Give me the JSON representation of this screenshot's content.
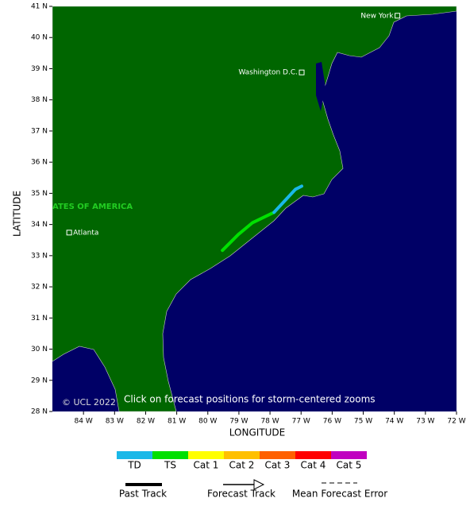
{
  "map": {
    "x_axis_label": "LONGITUDE",
    "y_axis_label": "LATITUDE",
    "xlim": [
      -85,
      -72
    ],
    "ylim": [
      28,
      41
    ],
    "xticks": [
      {
        "value": -84,
        "label": "84 W"
      },
      {
        "value": -83,
        "label": "83 W"
      },
      {
        "value": -82,
        "label": "82 W"
      },
      {
        "value": -81,
        "label": "81 W"
      },
      {
        "value": -80,
        "label": "80 W"
      },
      {
        "value": -79,
        "label": "79 W"
      },
      {
        "value": -78,
        "label": "78 W"
      },
      {
        "value": -77,
        "label": "77 W"
      },
      {
        "value": -76,
        "label": "76 W"
      },
      {
        "value": -75,
        "label": "75 W"
      },
      {
        "value": -74,
        "label": "74 W"
      },
      {
        "value": -73,
        "label": "73 W"
      },
      {
        "value": -72,
        "label": "72 W"
      }
    ],
    "yticks": [
      {
        "value": 28,
        "label": "28 N"
      },
      {
        "value": 29,
        "label": "29 N"
      },
      {
        "value": 30,
        "label": "30 N"
      },
      {
        "value": 31,
        "label": "31 N"
      },
      {
        "value": 32,
        "label": "32 N"
      },
      {
        "value": 33,
        "label": "33 N"
      },
      {
        "value": 34,
        "label": "34 N"
      },
      {
        "value": 35,
        "label": "35 N"
      },
      {
        "value": 36,
        "label": "36 N"
      },
      {
        "value": 37,
        "label": "37 N"
      },
      {
        "value": 38,
        "label": "38 N"
      },
      {
        "value": 39,
        "label": "39 N"
      },
      {
        "value": 40,
        "label": "40 N"
      },
      {
        "value": 41,
        "label": "41 N"
      }
    ],
    "region_label": "ATES OF AMERICA",
    "cities": [
      {
        "label": "Atlanta",
        "lon": -84.46,
        "lat": 33.74
      },
      {
        "label": "Washington D.C.",
        "lon": -76.98,
        "lat": 38.88
      },
      {
        "label": "New York",
        "lon": -73.9,
        "lat": 40.7
      }
    ],
    "track_segments": [
      {
        "color": "#00e000",
        "lon": [
          -79.53,
          -79.02,
          -78.56,
          -77.87
        ],
        "lat": [
          33.17,
          33.68,
          34.06,
          34.39
        ]
      },
      {
        "color": "#1ab8e8",
        "lon": [
          -77.87,
          -77.18,
          -76.98
        ],
        "lat": [
          34.39,
          35.13,
          35.23
        ]
      }
    ],
    "copyright": "© UCL 2022",
    "hint": "Click on forecast positions for storm-centered zooms"
  },
  "legend": {
    "categories": [
      {
        "label": "TD",
        "color": "#1ab8e8"
      },
      {
        "label": "TS",
        "color": "#00e000"
      },
      {
        "label": "Cat 1",
        "color": "#ffff00"
      },
      {
        "label": "Cat 2",
        "color": "#ffc000"
      },
      {
        "label": "Cat 3",
        "color": "#ff6000"
      },
      {
        "label": "Cat 4",
        "color": "#ff0000"
      },
      {
        "label": "Cat 5",
        "color": "#c000c0"
      }
    ],
    "past_track": "Past Track",
    "forecast_track": "Forecast Track",
    "mean_error": "Mean Forecast Error"
  }
}
